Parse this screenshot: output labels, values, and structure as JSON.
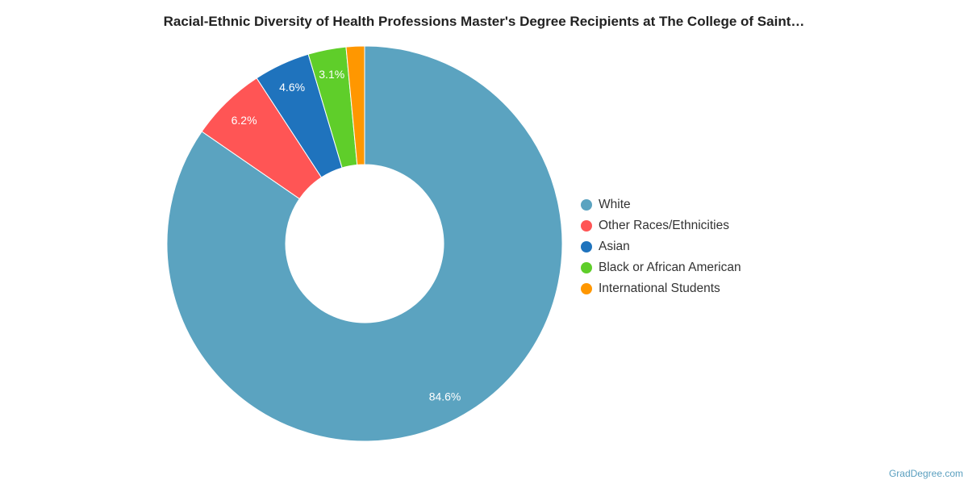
{
  "chart_data": {
    "type": "pie",
    "donut": true,
    "title": "Racial-Ethnic Diversity of Health Professions Master's Degree Recipients at The College of Saint…",
    "categories": [
      "White",
      "Other Races/Ethnicities",
      "Asian",
      "Black or African American",
      "International Students"
    ],
    "values": [
      84.6,
      6.2,
      4.6,
      3.1,
      1.5
    ],
    "data_labels": [
      "84.6%",
      "6.2%",
      "4.6%",
      "3.1%",
      ""
    ],
    "colors": [
      "#5ba3c0",
      "#ff5555",
      "#1f73bd",
      "#5fce2a",
      "#ff9700"
    ],
    "legend_placement": "right"
  },
  "credit": "GradDegree.com"
}
